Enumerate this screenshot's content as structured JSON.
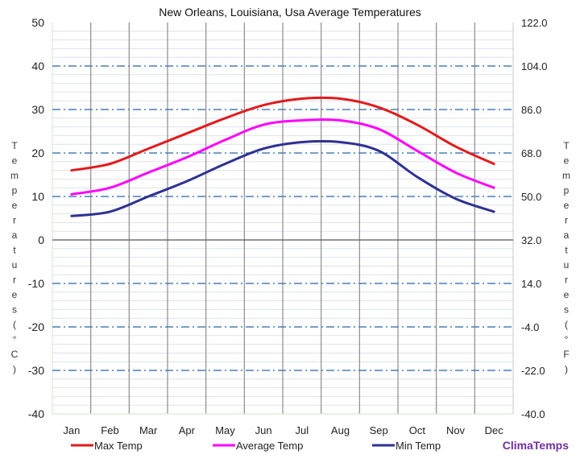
{
  "chart_data": {
    "type": "line",
    "title": "New Orleans, Louisiana, Usa Average Temperatures",
    "categories": [
      "Jan",
      "Feb",
      "Mar",
      "Apr",
      "May",
      "Jun",
      "Jul",
      "Aug",
      "Sep",
      "Oct",
      "Nov",
      "Dec"
    ],
    "ylabel": "Temperatures (°C)",
    "y2label": "Temperatures (°F)",
    "ylim": [
      -40,
      50
    ],
    "yticks": [
      50,
      40,
      30,
      20,
      10,
      0,
      -10,
      -20,
      -30,
      -40
    ],
    "y2ticks": [
      "122.0",
      "104.0",
      "86.0",
      "68.0",
      "50.0",
      "32.0",
      "14.0",
      "-4.0",
      "-22.0",
      "-40.0"
    ],
    "grid": true,
    "legend_position": "bottom",
    "series": [
      {
        "name": "Max Temp",
        "color": "#e31a1c",
        "values": [
          16,
          17.5,
          21,
          24.5,
          28,
          31,
          32.5,
          32.5,
          30.5,
          26.5,
          21.5,
          17.5
        ]
      },
      {
        "name": "Average Temp",
        "color": "#ff00ff",
        "values": [
          10.5,
          12,
          15.5,
          19,
          23,
          26.5,
          27.5,
          27.5,
          25.5,
          20.5,
          15.5,
          12
        ]
      },
      {
        "name": "Min Temp",
        "color": "#2e3192",
        "values": [
          5.5,
          6.5,
          10,
          13.5,
          17.5,
          21,
          22.5,
          22.5,
          20.5,
          14.5,
          9.5,
          6.5
        ]
      }
    ]
  },
  "brand": {
    "text": "ClimaTemps",
    "color": "#7030a0"
  }
}
